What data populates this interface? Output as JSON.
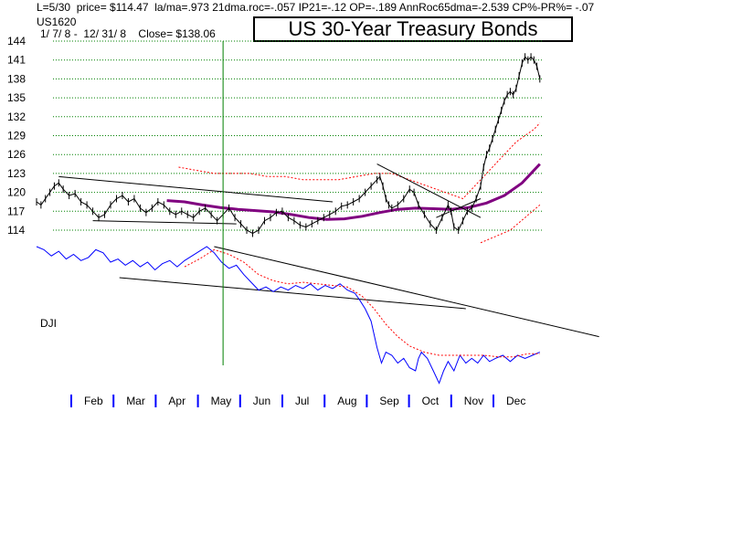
{
  "header": {
    "stats": "L=5/30  price= $114.47  la/ma=.973 21dma.roc=-.057 IP21=-.12 OP=-.189 AnnRoc65dma=-2.539 CP%-PR%= -.07",
    "symbol": "US1620",
    "range": "1/ 7/ 8 -  12/ 31/ 8    Close= $138.06"
  },
  "chart_data": {
    "type": "line",
    "title": "US 30-Year Treasury Bonds",
    "ylim": [
      111,
      144
    ],
    "yticks": [
      144,
      141,
      138,
      135,
      132,
      129,
      126,
      123,
      120,
      117,
      114
    ],
    "months": [
      "Feb",
      "Mar",
      "Apr",
      "May",
      "Jun",
      "Jul",
      "Aug",
      "Sep",
      "Oct",
      "Nov",
      "Dec"
    ],
    "grid": true,
    "series": [
      {
        "name": "",
        "role": "price",
        "color": "#000000",
        "points": [
          [
            0,
            118.5
          ],
          [
            3,
            118
          ],
          [
            6,
            119
          ],
          [
            9,
            120
          ],
          [
            12,
            121
          ],
          [
            15,
            121.5
          ],
          [
            18,
            120.5
          ],
          [
            22,
            119.5
          ],
          [
            26,
            119.8
          ],
          [
            30,
            118.5
          ],
          [
            34,
            118
          ],
          [
            38,
            117
          ],
          [
            42,
            116
          ],
          [
            46,
            116.5
          ],
          [
            50,
            118
          ],
          [
            54,
            119
          ],
          [
            58,
            119.5
          ],
          [
            62,
            118.5
          ],
          [
            66,
            119
          ],
          [
            70,
            117.5
          ],
          [
            74,
            116.8
          ],
          [
            78,
            117.5
          ],
          [
            82,
            118.5
          ],
          [
            86,
            118
          ],
          [
            90,
            117
          ],
          [
            94,
            116.5
          ],
          [
            98,
            117
          ],
          [
            102,
            116.5
          ],
          [
            106,
            116
          ],
          [
            110,
            117
          ],
          [
            114,
            117.5
          ],
          [
            118,
            116.5
          ],
          [
            122,
            115.5
          ],
          [
            126,
            116.5
          ],
          [
            130,
            117.5
          ],
          [
            134,
            116
          ],
          [
            138,
            115
          ],
          [
            142,
            114
          ],
          [
            146,
            113.5
          ],
          [
            150,
            114
          ],
          [
            154,
            115.5
          ],
          [
            158,
            116
          ],
          [
            162,
            116.8
          ],
          [
            166,
            117
          ],
          [
            170,
            116
          ],
          [
            174,
            115.5
          ],
          [
            178,
            114.8
          ],
          [
            182,
            114.5
          ],
          [
            186,
            115
          ],
          [
            190,
            115.5
          ],
          [
            194,
            116
          ],
          [
            198,
            116.5
          ],
          [
            202,
            117
          ],
          [
            206,
            117.8
          ],
          [
            210,
            118
          ],
          [
            214,
            118.5
          ],
          [
            218,
            119
          ],
          [
            222,
            120
          ],
          [
            226,
            121
          ],
          [
            230,
            122
          ],
          [
            232,
            122.5
          ],
          [
            234,
            121
          ],
          [
            236,
            119
          ],
          [
            238,
            118
          ],
          [
            240,
            117.5
          ],
          [
            244,
            118
          ],
          [
            248,
            119
          ],
          [
            252,
            120.5
          ],
          [
            255,
            120
          ],
          [
            258,
            118
          ],
          [
            262,
            116.5
          ],
          [
            266,
            115
          ],
          [
            270,
            114
          ],
          [
            274,
            116
          ],
          [
            278,
            118
          ],
          [
            280,
            117
          ],
          [
            282,
            114.5
          ],
          [
            285,
            114
          ],
          [
            288,
            115.5
          ],
          [
            291,
            117
          ],
          [
            294,
            117.5
          ],
          [
            297,
            119
          ],
          [
            300,
            121
          ],
          [
            302,
            124
          ],
          [
            304,
            126
          ],
          [
            306,
            127
          ],
          [
            308,
            128.5
          ],
          [
            310,
            130
          ],
          [
            312,
            131.5
          ],
          [
            314,
            133
          ],
          [
            316,
            134.5
          ],
          [
            318,
            135.5
          ],
          [
            320,
            136
          ],
          [
            322,
            135.5
          ],
          [
            324,
            136.5
          ],
          [
            326,
            138.5
          ],
          [
            328,
            140.5
          ],
          [
            330,
            141.5
          ],
          [
            332,
            141
          ],
          [
            334,
            141.5
          ],
          [
            336,
            141
          ],
          [
            338,
            140
          ],
          [
            340,
            138
          ]
        ]
      },
      {
        "name": "",
        "role": "moving-average",
        "color": "#800080",
        "points": [
          [
            88,
            118.7
          ],
          [
            100,
            118.5
          ],
          [
            112,
            118
          ],
          [
            124,
            117.6
          ],
          [
            136,
            117.3
          ],
          [
            148,
            117.1
          ],
          [
            160,
            116.9
          ],
          [
            172,
            116.5
          ],
          [
            184,
            116
          ],
          [
            196,
            115.7
          ],
          [
            208,
            115.8
          ],
          [
            220,
            116.2
          ],
          [
            232,
            116.8
          ],
          [
            244,
            117.3
          ],
          [
            256,
            117.5
          ],
          [
            268,
            117.4
          ],
          [
            280,
            117.3
          ],
          [
            292,
            117.6
          ],
          [
            304,
            118.3
          ],
          [
            316,
            119.5
          ],
          [
            328,
            121.5
          ],
          [
            340,
            124.5
          ]
        ]
      },
      {
        "name": "",
        "role": "upper-band",
        "color": "#ff0000",
        "points": [
          [
            96,
            124
          ],
          [
            108,
            123.5
          ],
          [
            120,
            123
          ],
          [
            132,
            123
          ],
          [
            144,
            123
          ],
          [
            156,
            122.5
          ],
          [
            168,
            122.5
          ],
          [
            180,
            122
          ],
          [
            192,
            122
          ],
          [
            204,
            122
          ],
          [
            216,
            122.5
          ],
          [
            228,
            123
          ],
          [
            240,
            123
          ],
          [
            252,
            122
          ],
          [
            264,
            121
          ],
          [
            276,
            120
          ],
          [
            288,
            119
          ],
          [
            300,
            122
          ],
          [
            312,
            125
          ],
          [
            324,
            128
          ],
          [
            336,
            130
          ],
          [
            340,
            131
          ]
        ]
      },
      {
        "name": "",
        "role": "lower-band",
        "color": "#ff0000",
        "points": [
          [
            300,
            112
          ],
          [
            310,
            113
          ],
          [
            320,
            114
          ],
          [
            330,
            116
          ],
          [
            340,
            118
          ]
        ]
      },
      {
        "name": "DJI",
        "role": "dji",
        "color": "#0000ff",
        "points": [
          [
            0,
            0.0
          ],
          [
            5,
            0.2
          ],
          [
            10,
            0.6
          ],
          [
            15,
            0.3
          ],
          [
            20,
            0.8
          ],
          [
            25,
            0.5
          ],
          [
            30,
            0.9
          ],
          [
            35,
            0.7
          ],
          [
            40,
            0.2
          ],
          [
            45,
            0.4
          ],
          [
            50,
            1.0
          ],
          [
            55,
            0.8
          ],
          [
            60,
            1.2
          ],
          [
            65,
            0.9
          ],
          [
            70,
            1.3
          ],
          [
            75,
            1.0
          ],
          [
            80,
            1.5
          ],
          [
            85,
            1.1
          ],
          [
            90,
            0.9
          ],
          [
            95,
            1.3
          ],
          [
            100,
            0.9
          ],
          [
            105,
            0.6
          ],
          [
            110,
            0.3
          ],
          [
            115,
            0.0
          ],
          [
            120,
            0.4
          ],
          [
            125,
            1.0
          ],
          [
            130,
            1.4
          ],
          [
            135,
            1.2
          ],
          [
            140,
            1.8
          ],
          [
            145,
            2.3
          ],
          [
            150,
            2.8
          ],
          [
            155,
            2.6
          ],
          [
            160,
            2.9
          ],
          [
            165,
            2.6
          ],
          [
            170,
            2.8
          ],
          [
            175,
            2.5
          ],
          [
            180,
            2.7
          ],
          [
            185,
            2.4
          ],
          [
            190,
            2.8
          ],
          [
            195,
            2.5
          ],
          [
            200,
            2.7
          ],
          [
            205,
            2.4
          ],
          [
            210,
            2.8
          ],
          [
            215,
            3.0
          ],
          [
            218,
            3.4
          ],
          [
            222,
            4.0
          ],
          [
            226,
            4.8
          ],
          [
            230,
            6.5
          ],
          [
            233,
            7.5
          ],
          [
            236,
            6.8
          ],
          [
            240,
            7.0
          ],
          [
            244,
            7.5
          ],
          [
            248,
            7.2
          ],
          [
            252,
            7.8
          ],
          [
            256,
            8.0
          ],
          [
            258,
            7.2
          ],
          [
            260,
            6.8
          ],
          [
            264,
            7.2
          ],
          [
            268,
            8.0
          ],
          [
            272,
            8.8
          ],
          [
            275,
            8.0
          ],
          [
            278,
            7.4
          ],
          [
            282,
            8.0
          ],
          [
            286,
            7.0
          ],
          [
            290,
            7.5
          ],
          [
            294,
            7.2
          ],
          [
            298,
            7.5
          ],
          [
            302,
            7.0
          ],
          [
            306,
            7.4
          ],
          [
            310,
            7.2
          ],
          [
            315,
            7.0
          ],
          [
            320,
            7.4
          ],
          [
            325,
            7.0
          ],
          [
            330,
            7.2
          ],
          [
            335,
            7.0
          ],
          [
            340,
            6.8
          ]
        ]
      },
      {
        "name": "",
        "role": "dji-average",
        "color": "#ff0000",
        "points": [
          [
            100,
            1.3
          ],
          [
            110,
            0.8
          ],
          [
            120,
            0.2
          ],
          [
            130,
            0.5
          ],
          [
            140,
            1.0
          ],
          [
            150,
            1.8
          ],
          [
            160,
            2.2
          ],
          [
            170,
            2.4
          ],
          [
            180,
            2.3
          ],
          [
            190,
            2.4
          ],
          [
            200,
            2.5
          ],
          [
            210,
            2.6
          ],
          [
            220,
            3.2
          ],
          [
            228,
            4.0
          ],
          [
            236,
            5.0
          ],
          [
            244,
            5.8
          ],
          [
            252,
            6.4
          ],
          [
            262,
            6.8
          ],
          [
            272,
            7.0
          ],
          [
            282,
            7.0
          ],
          [
            292,
            7.0
          ],
          [
            302,
            7.0
          ],
          [
            312,
            7.1
          ],
          [
            322,
            7.1
          ],
          [
            332,
            6.9
          ],
          [
            340,
            6.9
          ]
        ]
      }
    ],
    "trendlines": [
      {
        "color": "#000000",
        "points": [
          [
            15,
            122.5
          ],
          [
            200,
            118.5
          ]
        ]
      },
      {
        "color": "#000000",
        "points": [
          [
            38,
            115.5
          ],
          [
            135,
            115
          ]
        ]
      },
      {
        "color": "#000000",
        "points": [
          [
            230,
            124.5
          ],
          [
            300,
            116
          ]
        ]
      },
      {
        "color": "#000000",
        "points": [
          [
            270,
            116
          ],
          [
            300,
            119
          ]
        ]
      }
    ],
    "dji_trendlines": [
      {
        "color": "#000000",
        "points": [
          [
            120,
            0.0
          ],
          [
            380,
            5.8
          ]
        ]
      },
      {
        "color": "#000000",
        "points": [
          [
            56,
            2.0
          ],
          [
            290,
            4.0
          ]
        ]
      }
    ],
    "markers": [
      {
        "type": "vertical-line",
        "color": "#008000",
        "at": 126
      }
    ]
  }
}
